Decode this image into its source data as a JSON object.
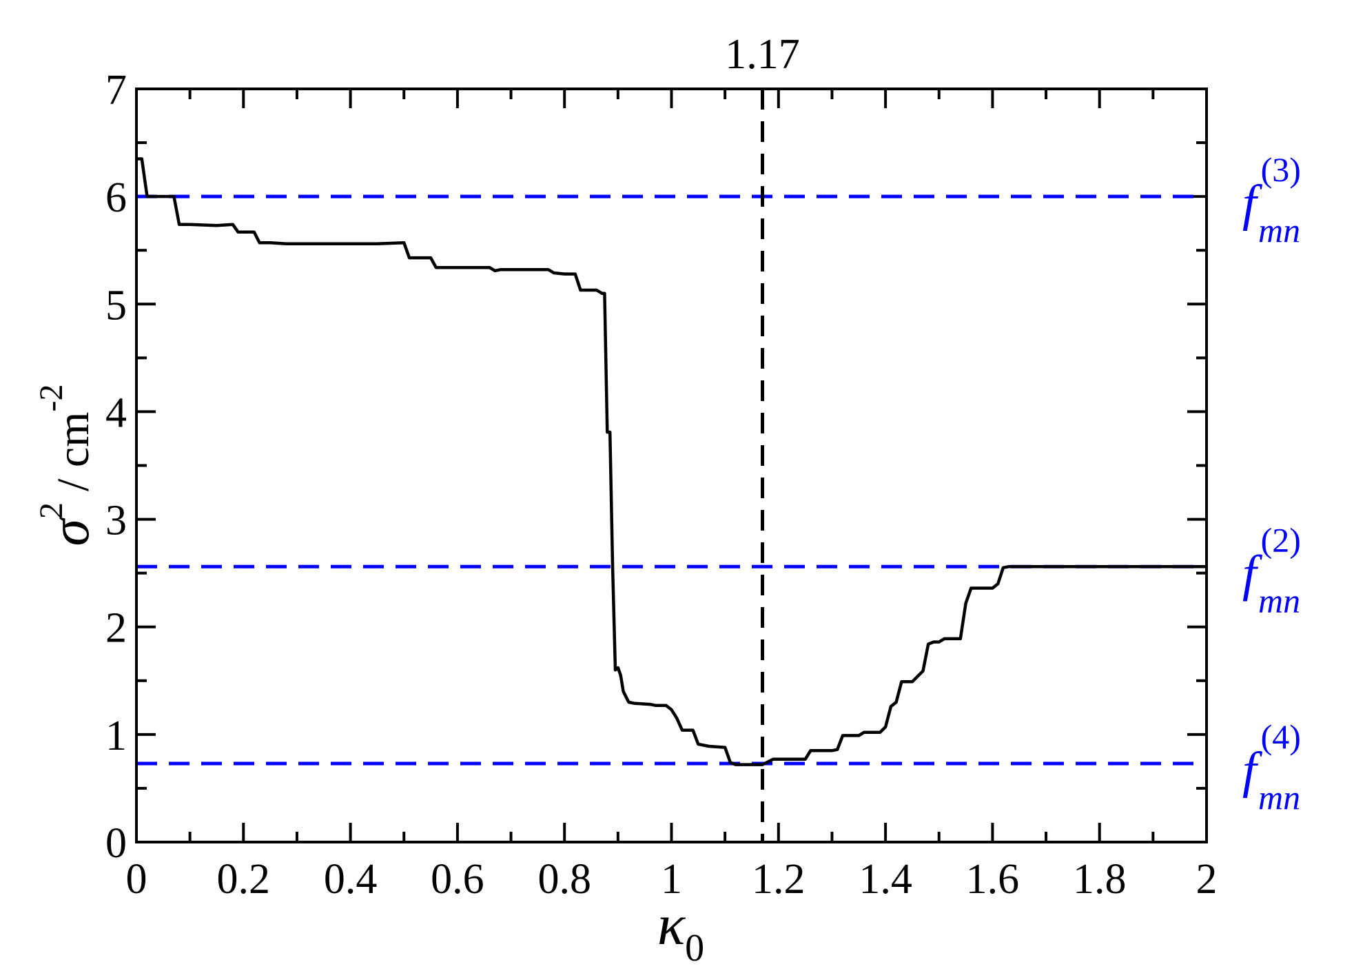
{
  "chart_data": {
    "type": "line",
    "title": "",
    "xlabel": "κ0",
    "ylabel": "σ2 / cm-2",
    "xlim": [
      0,
      2
    ],
    "ylim": [
      0,
      7
    ],
    "grid": false,
    "x_ticks": [
      "0",
      "0.2",
      "0.4",
      "0.6",
      "0.8",
      "1",
      "1.2",
      "1.4",
      "1.6",
      "1.8",
      "2"
    ],
    "y_ticks": [
      "0",
      "1",
      "2",
      "3",
      "4",
      "5",
      "6",
      "7"
    ],
    "x_axis_label": {
      "symbol": "κ",
      "subscript": "0"
    },
    "y_axis_label": {
      "symbol": "σ",
      "superscript": "2",
      "unit_prefix": "/ cm",
      "unit_exponent": "-2"
    },
    "series": [
      {
        "color": "#000000",
        "x": [
          0,
          0.01,
          0.02,
          0.03,
          0.04,
          0.05,
          0.06,
          0.07,
          0.08,
          0.1,
          0.15,
          0.18,
          0.19,
          0.22,
          0.23,
          0.25,
          0.28,
          0.35,
          0.45,
          0.5,
          0.51,
          0.55,
          0.56,
          0.58,
          0.66,
          0.67,
          0.68,
          0.77,
          0.78,
          0.8,
          0.82,
          0.83,
          0.86,
          0.87,
          0.875,
          0.88,
          0.885,
          0.89,
          0.895,
          0.9,
          0.905,
          0.91,
          0.92,
          0.93,
          0.96,
          0.97,
          0.99,
          1.0,
          1.01,
          1.02,
          1.04,
          1.05,
          1.07,
          1.1,
          1.11,
          1.12,
          1.15,
          1.17,
          1.19,
          1.2,
          1.24,
          1.25,
          1.26,
          1.3,
          1.31,
          1.32,
          1.35,
          1.36,
          1.39,
          1.4,
          1.41,
          1.42,
          1.43,
          1.44,
          1.45,
          1.47,
          1.48,
          1.49,
          1.5,
          1.51,
          1.54,
          1.55,
          1.56,
          1.57,
          1.6,
          1.61,
          1.62,
          1.63,
          1.65,
          1.7,
          2.0
        ],
        "y": [
          6.35,
          6.35,
          6.0,
          6.0,
          6.0,
          6.0,
          6.0,
          6.0,
          5.74,
          5.74,
          5.73,
          5.74,
          5.67,
          5.67,
          5.57,
          5.57,
          5.56,
          5.56,
          5.56,
          5.57,
          5.43,
          5.43,
          5.34,
          5.34,
          5.34,
          5.31,
          5.32,
          5.32,
          5.29,
          5.28,
          5.28,
          5.13,
          5.13,
          5.1,
          5.1,
          3.81,
          3.81,
          2.55,
          1.6,
          1.62,
          1.55,
          1.4,
          1.3,
          1.29,
          1.28,
          1.27,
          1.27,
          1.23,
          1.15,
          1.04,
          1.04,
          0.91,
          0.89,
          0.88,
          0.74,
          0.72,
          0.72,
          0.72,
          0.77,
          0.77,
          0.77,
          0.77,
          0.85,
          0.85,
          0.86,
          0.99,
          0.99,
          1.02,
          1.02,
          1.07,
          1.26,
          1.3,
          1.49,
          1.49,
          1.49,
          1.59,
          1.84,
          1.86,
          1.86,
          1.89,
          1.89,
          2.22,
          2.36,
          2.36,
          2.36,
          2.4,
          2.55,
          2.56,
          2.56,
          2.56,
          2.56
        ]
      }
    ],
    "reference_lines": [
      {
        "orientation": "horizontal",
        "y": 6.0,
        "color": "#0000ff",
        "style": "dashed",
        "label": {
          "base": "f",
          "subscript": "mn",
          "superscript": "(3)"
        }
      },
      {
        "orientation": "horizontal",
        "y": 2.56,
        "color": "#0000ff",
        "style": "dashed",
        "label": {
          "base": "f",
          "subscript": "mn",
          "superscript": "(2)"
        }
      },
      {
        "orientation": "horizontal",
        "y": 0.73,
        "color": "#0000ff",
        "style": "dashed",
        "label": {
          "base": "f",
          "subscript": "mn",
          "superscript": "(4)"
        }
      },
      {
        "orientation": "vertical",
        "x": 1.17,
        "color": "#000000",
        "style": "dashed",
        "label": "1.17"
      }
    ]
  }
}
